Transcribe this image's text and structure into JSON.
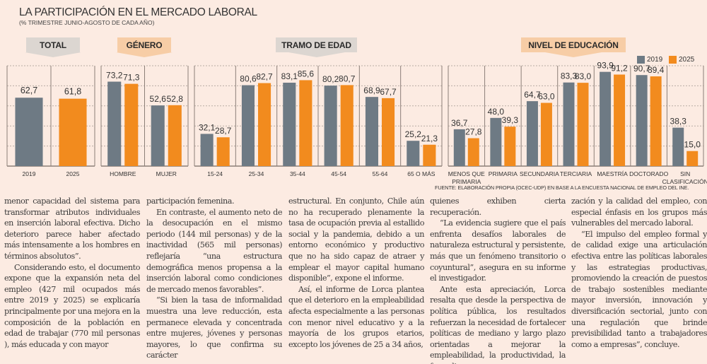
{
  "header": {
    "title": "LA PARTICIPACIÓN EN EL MERCADO LABORAL",
    "subtitle": "(% TRIMESTRE JUNIO-AGOSTO DE CADA AÑO)"
  },
  "tabs": [
    {
      "label": "TOTAL",
      "style": "gray"
    },
    {
      "label": "GÉNERO",
      "style": "orange"
    },
    {
      "label": "TRAMO DE EDAD",
      "style": "gray"
    },
    {
      "label": "NIVEL DE EDUCACIÓN",
      "style": "orange"
    }
  ],
  "legend": {
    "items": [
      {
        "label": "2019",
        "color": "#6e7a84"
      },
      {
        "label": "2025",
        "color": "#f28b1e"
      }
    ]
  },
  "colors": {
    "series_2019": "#6e7a84",
    "series_2025": "#f28b1e",
    "panel_border": "#8c7f78",
    "gridline": "#b8aca4"
  },
  "chart_data": [
    {
      "type": "bar",
      "title": "TOTAL",
      "categories": [
        "2019",
        "2025"
      ],
      "series": [
        {
          "name": "Total",
          "values": [
            62.7,
            61.8
          ],
          "colors": [
            "2019",
            "2025"
          ]
        }
      ],
      "value_labels": [
        "62,7",
        "61,8"
      ],
      "ylim": [
        0,
        92
      ],
      "grid": true
    },
    {
      "type": "bar",
      "title": "GÉNERO",
      "categories": [
        "HOMBRE",
        "MUJER"
      ],
      "series": [
        {
          "name": "2019",
          "values": [
            73.2,
            52.6
          ],
          "labels": [
            "73,2",
            "52,6"
          ]
        },
        {
          "name": "2025",
          "values": [
            71.3,
            52.8
          ],
          "labels": [
            "71,3",
            "52,8"
          ]
        }
      ],
      "ylim": [
        0,
        87
      ],
      "grid": true
    },
    {
      "type": "bar",
      "title": "TRAMO DE EDAD",
      "categories": [
        "15-24",
        "25-34",
        "35-44",
        "45-54",
        "55-64",
        "65 O MÁS"
      ],
      "series": [
        {
          "name": "2019",
          "values": [
            32.1,
            80.6,
            83.1,
            80.2,
            68.9,
            25.2
          ],
          "labels": [
            "32,1",
            "80,6",
            "83,1",
            "80,2",
            "68,9",
            "25,2"
          ]
        },
        {
          "name": "2025",
          "values": [
            28.7,
            82.7,
            85.6,
            80.7,
            67.7,
            21.3
          ],
          "labels": [
            "28,7",
            "82,7",
            "85,6",
            "80,7",
            "67,7",
            "21,3"
          ]
        }
      ],
      "ylim": [
        0,
        100
      ],
      "grid": true
    },
    {
      "type": "bar",
      "title": "NIVEL DE EDUCACIÓN",
      "categories": [
        "MENOS QUE PRIMARIA",
        "PRIMARIA",
        "SECUNDARIA",
        "TERCIARIA",
        "MAESTRÍA",
        "DOCTORADO",
        "SIN CLASIFICACIÓN"
      ],
      "category_lines": [
        [
          "MENOS QUE",
          "PRIMARIA"
        ],
        [
          "PRIMARIA"
        ],
        [
          "SECUNDARIA"
        ],
        [
          "TERCIARIA"
        ],
        [
          "MAESTRÍA"
        ],
        [
          "DOCTORADO"
        ],
        [
          "SIN",
          "CLASIFICACIÓN"
        ]
      ],
      "series": [
        {
          "name": "2019",
          "values": [
            36.7,
            48.0,
            64.7,
            83.3,
            93.9,
            90.7,
            38.3
          ],
          "labels": [
            "36,7",
            "48,0",
            "64,7",
            "83,3",
            "93,9",
            "90,7",
            "38,3"
          ]
        },
        {
          "name": "2025",
          "values": [
            27.8,
            39.3,
            63.0,
            83.0,
            91.2,
            89.4,
            15.0
          ],
          "labels": [
            "27,8",
            "39,3",
            "63,0",
            "83,0",
            "91,2",
            "89,4",
            "15,0"
          ]
        }
      ],
      "ylim": [
        0,
        100
      ],
      "grid": true,
      "legend": "top-right"
    }
  ],
  "source": "FUENTE: ELABORACIÓN PROPIA (OCEC-UDP) EN BASE A LA ENCUESTA NACIONAL DE EMPLEO DEL INE.",
  "article": {
    "columns": [
      [
        {
          "indent": false,
          "text": "menor capacidad del sistema para transformar atributos individuales en inserción laboral efectiva. Dicho deterioro parece haber afectado más intensamente a los hombres en términos absolutos”."
        },
        {
          "indent": true,
          "text": "Considerando esto, el documento expone que la expansión neta del empleo (427 mil ocupados más entre 2019 y 2025) se explicaría principalmente por una mejora en la composición de la población en edad de trabajar (770 mil personas ), más educada y con mayor"
        }
      ],
      [
        {
          "indent": false,
          "text": "participación femenina."
        },
        {
          "indent": true,
          "text": "En contraste, el aumento neto de la desocupación en el mismo periodo (144 mil personas) y de la inactividad (565 mil personas) reflejaría “una estructura demográfica menos propensa a la inserción laboral como condiciones de mercado menos favorables”."
        },
        {
          "indent": true,
          "text": "“Si bien la tasa de informalidad muestra una leve reducción, esta permanece elevada y concentrada entre mujeres, jóvenes y personas mayores, lo que confirma su carácter"
        }
      ],
      [
        {
          "indent": false,
          "text": "estructural. En conjunto, Chile aún no ha recuperado plenamente la tasa de ocupación previa al estallido social y la pandemia, debido a un entorno económico y productivo que no ha sido capaz de atraer y emplear el mayor capital humano disponible”, expone el informe."
        },
        {
          "indent": true,
          "text": "Así, el informe de Lorca plantea que el deterioro en la empleabilidad afecta especialmente a las personas con menor nivel educativo y a la mayoría de los grupos etarios, excepto los jóvenes de 25 a 34 años,"
        }
      ],
      [
        {
          "indent": false,
          "text": "quienes exhiben cierta recuperación."
        },
        {
          "indent": true,
          "text": "“La evidencia sugiere que el país enfrenta desafíos laborales de naturaleza estructural y persistente, más que un fenómeno transitorio o coyuntural”, asegura en su informe el investigador."
        },
        {
          "indent": true,
          "text": "Ante esta apreciación, Lorca resalta que desde la perspectiva de política pública, los resultados refuerzan la necesidad de fortalecer políticas de mediano y largo plazo orientadas a mejorar la empleabilidad, la productividad, la formali-"
        }
      ],
      [
        {
          "indent": false,
          "text": "zación y la calidad del empleo, con especial énfasis en los grupos más vulnerables del mercado laboral."
        },
        {
          "indent": true,
          "text": "“El impulso del empleo formal y de calidad exige una articulación efectiva entre las políticas laborales y las estrategias productivas, promoviendo la creación de puestos de trabajo sostenibles mediante mayor inversión, innovación y diversificación sectorial, junto con una regulación que brinde previsibilidad tanto a trabajadores como a empresas”, concluye."
        }
      ]
    ]
  }
}
